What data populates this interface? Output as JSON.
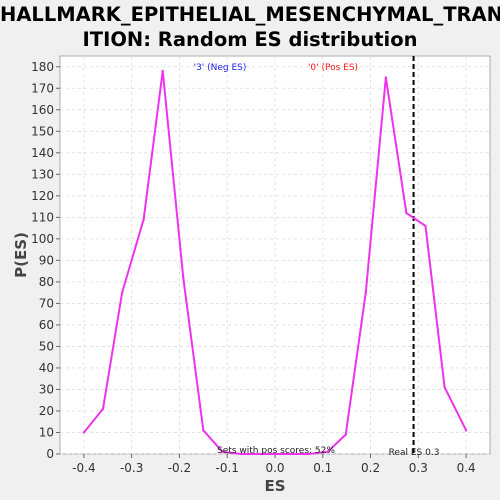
{
  "title_line1": "HALLMARK_EPITHELIAL_MESENCHYMAL_TRANS",
  "title_line2": "ITION: Random ES distribution",
  "chart_data": {
    "type": "line",
    "title": "HALLMARK_EPITHELIAL_MESENCHYMAL_TRANSITION: Random ES distribution",
    "xlabel": "ES",
    "ylabel": "P(ES)",
    "xlim": [
      -0.45,
      0.45
    ],
    "ylim": [
      0,
      185
    ],
    "xticks": [
      -0.4,
      -0.3,
      -0.2,
      -0.1,
      0.0,
      0.1,
      0.2,
      0.3,
      0.4
    ],
    "xtick_labels": [
      "-0.4",
      "-0.3",
      "-0.2",
      "-0.1",
      "0.0",
      "0.1",
      "0.2",
      "0.3",
      "0.4"
    ],
    "yticks": [
      0,
      10,
      20,
      30,
      40,
      50,
      60,
      70,
      80,
      90,
      100,
      110,
      120,
      130,
      140,
      150,
      160,
      170,
      180
    ],
    "grid": true,
    "series_color": "#ee33ee",
    "series": [
      {
        "x": [
          -0.4,
          -0.36,
          -0.32,
          -0.275,
          -0.235,
          -0.192,
          -0.15,
          -0.11,
          -0.07,
          -0.03,
          0.0,
          0.03,
          0.07,
          0.11,
          0.148,
          0.19,
          0.232,
          0.275,
          0.315,
          0.355,
          0.4
        ],
        "y": [
          10,
          21,
          75,
          109,
          178,
          82,
          11,
          1,
          0,
          0,
          0,
          0,
          0,
          1,
          9,
          75,
          175,
          112,
          106,
          31,
          11
        ]
      }
    ],
    "real_es": 0.3,
    "real_es_line_x": 0.29,
    "real_es_label": "Real ES 0.3",
    "annotation_neg": "'3' (Neg ES)",
    "annotation_pos": "'0' (Pos ES)",
    "annotation_pos_scores": "Sets with pos scores: 52%",
    "colors": {
      "neg_label": "#1a1aff",
      "pos_label": "#ff1a1a",
      "plot_bg": "#ffffff",
      "grid": "#dcdcdc"
    }
  }
}
